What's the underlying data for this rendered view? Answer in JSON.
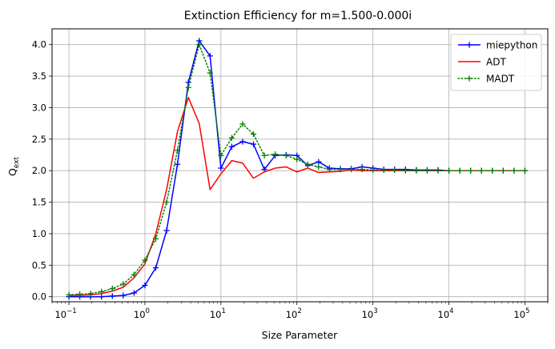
{
  "chart_data": {
    "type": "line",
    "title": "Extinction Efficiency for m=1.500-0.000i",
    "xlabel": "Size Parameter",
    "ylabel": "Q_ext",
    "xscale": "log",
    "xlim": [
      0.06,
      200000
    ],
    "ylim": [
      -0.08,
      4.25
    ],
    "grid": true,
    "legend_position": "top-right",
    "x_ticks": [
      {
        "value": 0.1,
        "base": "10",
        "exp": "−1"
      },
      {
        "value": 1,
        "base": "10",
        "exp": "0"
      },
      {
        "value": 10,
        "base": "10",
        "exp": "1"
      },
      {
        "value": 100,
        "base": "10",
        "exp": "2"
      },
      {
        "value": 1000,
        "base": "10",
        "exp": "3"
      },
      {
        "value": 10000,
        "base": "10",
        "exp": "4"
      },
      {
        "value": 100000,
        "base": "10",
        "exp": "5"
      }
    ],
    "y_ticks": [
      0.0,
      0.5,
      1.0,
      1.5,
      2.0,
      2.5,
      3.0,
      3.5,
      4.0
    ],
    "y_tick_labels": [
      "0.0",
      "0.5",
      "1.0",
      "1.5",
      "2.0",
      "2.5",
      "3.0",
      "3.5",
      "4.0"
    ],
    "series": [
      {
        "name": "miepython",
        "color": "#0000ff",
        "style": "solid",
        "marker": "+",
        "x": [
          0.1,
          0.139,
          0.193,
          0.268,
          0.373,
          0.518,
          0.72,
          1.0,
          1.39,
          1.93,
          2.68,
          3.73,
          5.18,
          7.2,
          10.0,
          13.9,
          19.3,
          26.8,
          37.3,
          51.8,
          72.0,
          100,
          139,
          193,
          268,
          373,
          518,
          720,
          1000,
          1390,
          1930,
          2680,
          3730,
          5180,
          7200,
          10000,
          13900,
          19300,
          26800,
          37300,
          51800,
          72000,
          100000
        ],
        "y": [
          0.0,
          0.0,
          0.0,
          0.0,
          0.01,
          0.02,
          0.06,
          0.18,
          0.46,
          1.05,
          2.1,
          3.4,
          4.06,
          3.82,
          2.04,
          2.38,
          2.46,
          2.42,
          2.02,
          2.24,
          2.25,
          2.24,
          2.08,
          2.14,
          2.04,
          2.03,
          2.03,
          2.06,
          2.04,
          2.02,
          2.02,
          2.02,
          2.01,
          2.01,
          2.01,
          2.0,
          2.0,
          2.0,
          2.0,
          2.0,
          2.0,
          2.0,
          2.0
        ]
      },
      {
        "name": "ADT",
        "color": "#ff0000",
        "style": "solid",
        "marker": "none",
        "x": [
          0.1,
          0.139,
          0.193,
          0.268,
          0.373,
          0.518,
          0.72,
          1.0,
          1.39,
          1.93,
          2.68,
          3.73,
          5.18,
          7.2,
          10.0,
          13.9,
          19.3,
          26.8,
          37.3,
          51.8,
          72.0,
          100,
          139,
          193,
          268,
          373,
          518,
          720,
          1000,
          1390,
          1930,
          2680,
          3730,
          5180,
          7200,
          10000,
          13900,
          19300,
          26800,
          37300,
          51800,
          72000,
          100000
        ],
        "y": [
          0.02,
          0.02,
          0.03,
          0.05,
          0.09,
          0.15,
          0.3,
          0.52,
          1.0,
          1.7,
          2.62,
          3.16,
          2.75,
          1.7,
          1.95,
          2.16,
          2.12,
          1.88,
          1.98,
          2.04,
          2.06,
          1.98,
          2.04,
          1.97,
          1.98,
          1.99,
          2.01,
          2.0,
          2.0,
          2.0,
          2.0,
          2.0,
          2.0,
          2.0,
          2.0,
          2.0,
          2.0,
          2.0,
          2.0,
          2.0,
          2.0,
          2.0,
          2.0
        ]
      },
      {
        "name": "MADT",
        "color": "#008000",
        "style": "dotted",
        "marker": "+",
        "x": [
          0.1,
          0.139,
          0.193,
          0.268,
          0.373,
          0.518,
          0.72,
          1.0,
          1.39,
          1.93,
          2.68,
          3.73,
          5.18,
          7.2,
          10.0,
          13.9,
          19.3,
          26.8,
          37.3,
          51.8,
          72.0,
          100,
          139,
          193,
          268,
          373,
          518,
          720,
          1000,
          1390,
          1930,
          2680,
          3730,
          5180,
          7200,
          10000,
          13900,
          19300,
          26800,
          37300,
          51800,
          72000,
          100000
        ],
        "y": [
          0.03,
          0.04,
          0.05,
          0.08,
          0.13,
          0.2,
          0.35,
          0.58,
          0.92,
          1.5,
          2.32,
          3.32,
          4.0,
          3.55,
          2.24,
          2.52,
          2.74,
          2.58,
          2.24,
          2.26,
          2.24,
          2.18,
          2.1,
          2.06,
          2.02,
          2.02,
          2.02,
          2.02,
          2.01,
          2.01,
          2.01,
          2.0,
          2.0,
          2.0,
          2.0,
          2.0,
          2.0,
          2.0,
          2.0,
          2.0,
          2.0,
          2.0,
          2.0
        ]
      }
    ]
  }
}
